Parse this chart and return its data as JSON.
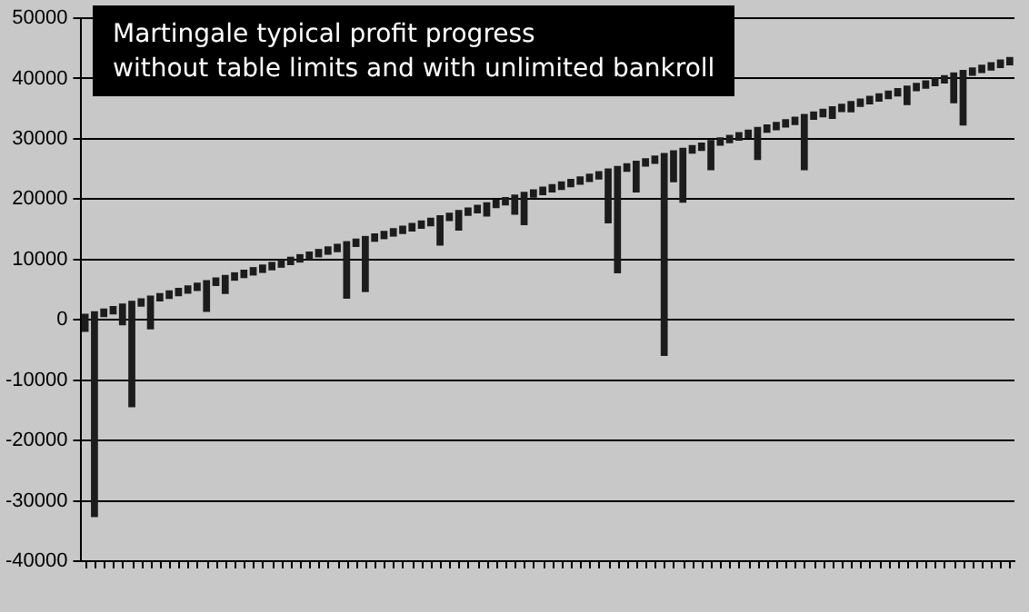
{
  "chart_data": {
    "type": "bar",
    "title": "Martingale typical profit progress\nwithout table limits and with unlimited bankroll",
    "categories": [
      null,
      null,
      null,
      null,
      null,
      null,
      null,
      null,
      null,
      null,
      null,
      null,
      null,
      null,
      null,
      null,
      null,
      null,
      null,
      null,
      null,
      null,
      null,
      null,
      null,
      null,
      null,
      null,
      null,
      null,
      null,
      null,
      null,
      null,
      null,
      null,
      null,
      null,
      null,
      null,
      null,
      null,
      null,
      null,
      null,
      null,
      null,
      null,
      null,
      null,
      null,
      null,
      null,
      null,
      null,
      null,
      null,
      null,
      null,
      null,
      null,
      null,
      null,
      null,
      null,
      null,
      null,
      null,
      null,
      null,
      null,
      null,
      null,
      null,
      null,
      null,
      null,
      null,
      null,
      null,
      null,
      null,
      null,
      null,
      null,
      null,
      null,
      null,
      null,
      null,
      null,
      null,
      null,
      null,
      null,
      null,
      null,
      null,
      null,
      null
    ],
    "base": [
      -2000,
      -32700,
      460,
      890,
      -900,
      -14500,
      2180,
      -1600,
      3040,
      3470,
      3900,
      4330,
      4760,
      1300,
      5620,
      4300,
      6480,
      6910,
      7340,
      7770,
      8200,
      8630,
      9060,
      9490,
      9920,
      10350,
      10780,
      11210,
      3500,
      12070,
      4600,
      12930,
      13360,
      13790,
      14220,
      14650,
      15080,
      15510,
      12300,
      16370,
      14800,
      17230,
      17660,
      17100,
      18520,
      18950,
      17400,
      15700,
      20240,
      20670,
      21100,
      21530,
      21960,
      22390,
      22820,
      23250,
      16000,
      7700,
      24540,
      21100,
      25400,
      25830,
      -6000,
      22800,
      19400,
      27550,
      27980,
      24800,
      28840,
      29270,
      29700,
      30130,
      26500,
      30990,
      31420,
      31850,
      32280,
      24800,
      33140,
      33570,
      33300,
      34430,
      34400,
      35290,
      35720,
      36150,
      36580,
      37010,
      35600,
      37870,
      38300,
      38730,
      39160,
      35900,
      32200,
      40450,
      40880,
      41310,
      41740,
      42170
    ],
    "values": [
      3000,
      34130,
      1400,
      1400,
      3620,
      17650,
      1400,
      5610,
      1400,
      1400,
      1400,
      1400,
      1400,
      5290,
      1400,
      3150,
      1400,
      1400,
      1400,
      1400,
      1400,
      1400,
      1400,
      1400,
      1400,
      1400,
      1400,
      1400,
      9540,
      1400,
      9300,
      1400,
      1400,
      1400,
      1400,
      1400,
      1400,
      1400,
      5040,
      1400,
      3400,
      1400,
      1400,
      2390,
      1400,
      1400,
      3380,
      5510,
      1400,
      1400,
      1400,
      1400,
      1400,
      1400,
      1400,
      1400,
      9080,
      17810,
      1400,
      5270,
      1400,
      1400,
      33660,
      5290,
      9120,
      1400,
      1400,
      5010,
      1400,
      1400,
      1400,
      1400,
      5460,
      1400,
      1400,
      1400,
      1400,
      9310,
      1400,
      1400,
      2100,
      1400,
      1860,
      1400,
      1400,
      1400,
      1400,
      1400,
      3240,
      1400,
      1400,
      1400,
      1400,
      5090,
      9220,
      1400,
      1400,
      1400,
      1400,
      1400
    ],
    "color": "#1c1c1c",
    "ylim": [
      -40000,
      50000
    ],
    "yticks": [
      -40000,
      -30000,
      -20000,
      -10000,
      0,
      10000,
      20000,
      30000,
      40000,
      50000
    ],
    "grid": "y",
    "legend": false
  }
}
